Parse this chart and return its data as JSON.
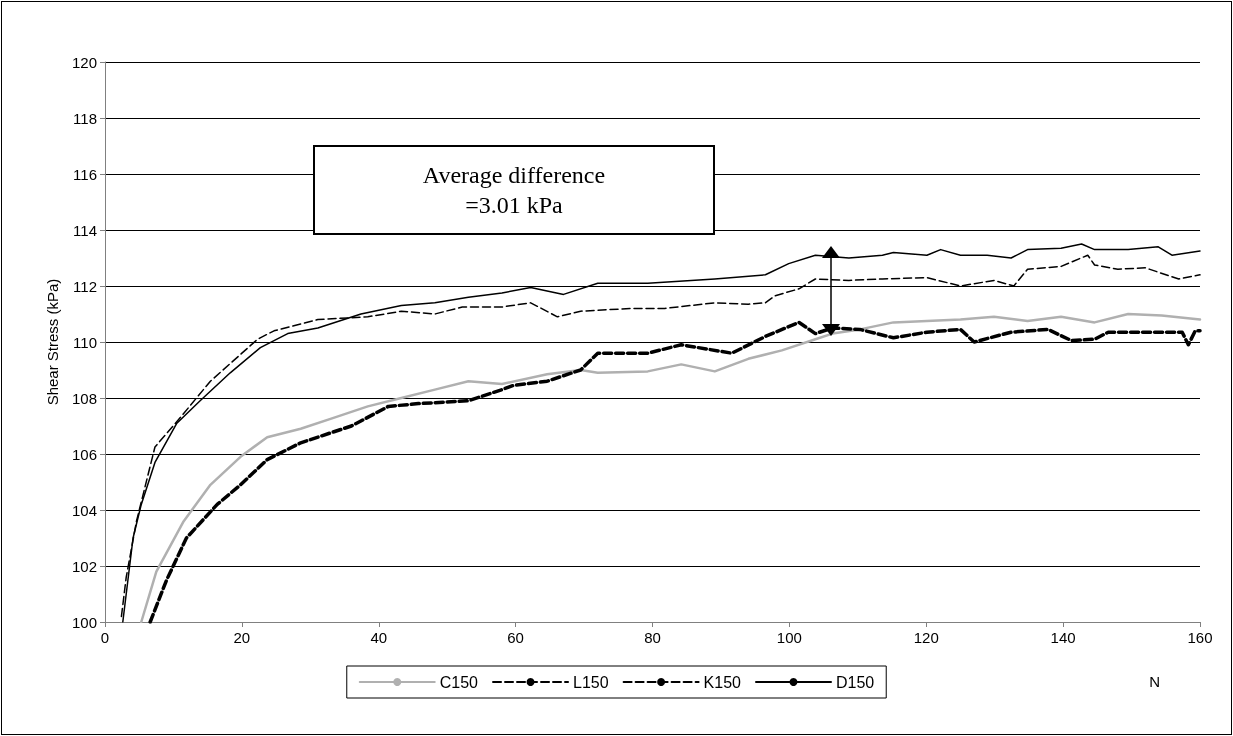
{
  "chart_data": {
    "type": "line",
    "xlabel": "N",
    "ylabel": "Shear Stress (kPa)",
    "xlim": [
      0,
      160
    ],
    "xticks": [
      0,
      20,
      40,
      60,
      80,
      100,
      120,
      140,
      160
    ],
    "ylim": [
      100,
      120
    ],
    "yticks": [
      100,
      102,
      104,
      106,
      108,
      110,
      112,
      114,
      116,
      118,
      120
    ],
    "grid": "y",
    "legend": "bottom",
    "marker": "none",
    "annotations": [
      "Average difference\n=3.01 kPa"
    ],
    "series": [
      {
        "name": "C150",
        "color": "#b0b0b0",
        "line_style": "solid",
        "x": [
          5.3,
          7.5,
          11.5,
          15.4,
          19.8,
          23.7,
          28.6,
          33.5,
          38.4,
          43.3,
          48.2,
          53.1,
          58,
          64.6,
          69.5,
          72,
          79.3,
          84.2,
          89.1,
          94,
          98.9,
          103.8,
          106.3,
          110.3,
          115.2,
          120.1,
          125,
          129.9,
          134.8,
          139.7,
          144.6,
          149.5,
          154.4,
          160
        ],
        "values": [
          100,
          101.8,
          103.6,
          104.9,
          105.9,
          106.6,
          106.9,
          107.3,
          107.7,
          108,
          108.3,
          108.6,
          108.5,
          108.85,
          109,
          108.9,
          108.95,
          109.2,
          108.95,
          109.4,
          109.7,
          110.1,
          110.3,
          110.45,
          110.7,
          110.75,
          110.8,
          110.9,
          110.75,
          110.9,
          110.7,
          111,
          110.95,
          110.8
        ]
      },
      {
        "name": "L150",
        "color": "#000000",
        "line_style": "dashed",
        "x": [
          2.4,
          3.1,
          4.6,
          7.3,
          11,
          15.4,
          22.3,
          24.7,
          31.1,
          38.4,
          43.3,
          48.2,
          52.2,
          58,
          62.2,
          66.1,
          69.5,
          76.9,
          81.8,
          89.1,
          94,
          96.5,
          97.9,
          101.4,
          103.8,
          108.7,
          113.6,
          120.1,
          125,
          129.9,
          132.8,
          134.8,
          139.7,
          143.6,
          144.6,
          148,
          152,
          156.9,
          160
        ],
        "values": [
          100.2,
          101.6,
          103.6,
          106.25,
          107.3,
          108.6,
          110.1,
          110.4,
          110.8,
          110.9,
          111.1,
          111,
          111.25,
          111.25,
          111.4,
          110.9,
          111.1,
          111.2,
          111.2,
          111.4,
          111.35,
          111.4,
          111.65,
          111.9,
          112.25,
          112.2,
          112.25,
          112.3,
          112,
          112.2,
          112,
          112.6,
          112.7,
          113.1,
          112.75,
          112.6,
          112.65,
          112.25,
          112.4
        ]
      },
      {
        "name": "K150",
        "color": "#000000",
        "line_style": "dashed",
        "x": [
          6.6,
          9,
          11.9,
          16.4,
          19.8,
          23.7,
          28.6,
          36,
          41.4,
          45.8,
          53.1,
          58,
          59.7,
          64.6,
          69.5,
          72,
          79.3,
          84.2,
          91.6,
          96.5,
          101.4,
          103.8,
          106.3,
          110.3,
          115.2,
          120.1,
          125,
          127,
          132.4,
          137.8,
          141.2,
          144.6,
          146.6,
          157.4,
          158.3,
          159.3,
          160
        ],
        "values": [
          100,
          101.5,
          103,
          104.2,
          104.9,
          105.8,
          106.4,
          107,
          107.7,
          107.8,
          107.9,
          108.3,
          108.45,
          108.6,
          109,
          109.6,
          109.6,
          109.9,
          109.6,
          110.2,
          110.7,
          110.3,
          110.5,
          110.45,
          110.15,
          110.35,
          110.45,
          110,
          110.35,
          110.45,
          110.05,
          110.1,
          110.35,
          110.35,
          109.9,
          110.4,
          110.4
        ]
      },
      {
        "name": "D150",
        "color": "#000000",
        "line_style": "solid",
        "x": [
          2.6,
          4.1,
          5.3,
          7.3,
          10.5,
          13.9,
          18.3,
          22.7,
          26.7,
          31.1,
          37.4,
          43.3,
          48.2,
          53.1,
          58,
          62.2,
          67,
          72,
          79.3,
          89.1,
          96.5,
          99.9,
          103.8,
          108.7,
          113.6,
          115.2,
          120.1,
          122.1,
          125,
          128.9,
          132.4,
          134.8,
          139.7,
          142.7,
          144.6,
          149.5,
          153.9,
          155.9,
          160
        ],
        "values": [
          100,
          103,
          104.2,
          105.7,
          107.1,
          107.9,
          108.9,
          109.8,
          110.3,
          110.5,
          111,
          111.3,
          111.4,
          111.6,
          111.75,
          111.95,
          111.7,
          112.1,
          112.1,
          112.25,
          112.4,
          112.8,
          113.1,
          113,
          113.1,
          113.2,
          113.1,
          113.3,
          113.1,
          113.1,
          113,
          113.3,
          113.35,
          113.5,
          113.3,
          113.3,
          113.4,
          113.1,
          113.25
        ]
      }
    ]
  }
}
